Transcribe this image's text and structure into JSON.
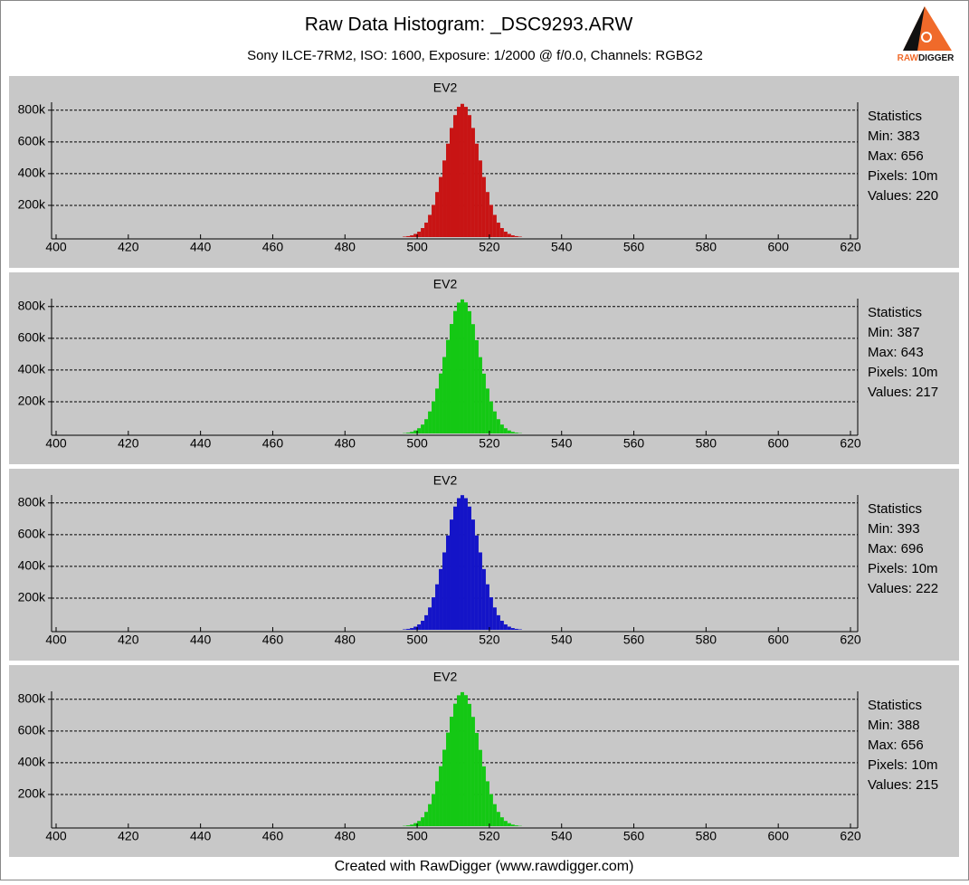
{
  "header": {
    "title": "Raw Data Histogram: _DSC9293.ARW",
    "subtitle": "Sony ILCE-7RM2, ISO: 1600, Exposure: 1/2000 @ f/0.0, Channels: RGBG2"
  },
  "logo": {
    "part1": "RAW",
    "part2": "DIGGER"
  },
  "footer": "Created with RawDigger (www.rawdigger.com)",
  "chart_data": [
    {
      "type": "histogram",
      "title": "EV2",
      "color": "#c81414",
      "bins": [
        496,
        497,
        498,
        499,
        500,
        501,
        502,
        503,
        504,
        505,
        506,
        507,
        508,
        509,
        510,
        511,
        512,
        513,
        514,
        515,
        516,
        517,
        518,
        519,
        520,
        521,
        522,
        523,
        524,
        525,
        526,
        527,
        528,
        529
      ],
      "values": [
        3000,
        6000,
        11000,
        20000,
        34000,
        57000,
        91000,
        140000,
        203000,
        284000,
        379000,
        483000,
        589000,
        688000,
        769000,
        821000,
        840000,
        821000,
        769000,
        688000,
        589000,
        483000,
        379000,
        284000,
        203000,
        140000,
        91000,
        57000,
        34000,
        20000,
        11000,
        6000,
        3000
      ],
      "xlim": [
        400,
        620
      ],
      "xticks": [
        400,
        420,
        440,
        460,
        480,
        500,
        520,
        540,
        560,
        580,
        600,
        620
      ],
      "ylim": [
        0,
        850000
      ],
      "yticks": [
        {
          "value": 200000,
          "label": "200k"
        },
        {
          "value": 400000,
          "label": "400k"
        },
        {
          "value": 600000,
          "label": "600k"
        },
        {
          "value": 800000,
          "label": "800k"
        }
      ],
      "grid": true,
      "statistics": [
        "Statistics",
        "Min: 383",
        "Max: 656",
        "Pixels: 10m",
        "Values: 220"
      ]
    },
    {
      "type": "histogram",
      "title": "EV2",
      "color": "#14c814",
      "bins": [
        496,
        497,
        498,
        499,
        500,
        501,
        502,
        503,
        504,
        505,
        506,
        507,
        508,
        509,
        510,
        511,
        512,
        513,
        514,
        515,
        516,
        517,
        518,
        519,
        520,
        521,
        522,
        523,
        524,
        525,
        526,
        527,
        528,
        529
      ],
      "values": [
        2000,
        5000,
        10000,
        19000,
        33000,
        56000,
        90000,
        139000,
        202000,
        283000,
        378000,
        482000,
        590000,
        690000,
        772000,
        825000,
        845000,
        826000,
        771000,
        689000,
        588000,
        481000,
        377000,
        283000,
        202000,
        139000,
        90000,
        56000,
        33000,
        19000,
        10000,
        5000,
        2000
      ],
      "xlim": [
        400,
        620
      ],
      "xticks": [
        400,
        420,
        440,
        460,
        480,
        500,
        520,
        540,
        560,
        580,
        600,
        620
      ],
      "ylim": [
        0,
        850000
      ],
      "yticks": [
        {
          "value": 200000,
          "label": "200k"
        },
        {
          "value": 400000,
          "label": "400k"
        },
        {
          "value": 600000,
          "label": "600k"
        },
        {
          "value": 800000,
          "label": "800k"
        }
      ],
      "grid": true,
      "statistics": [
        "Statistics",
        "Min: 387",
        "Max: 643",
        "Pixels: 10m",
        "Values: 217"
      ]
    },
    {
      "type": "histogram",
      "title": "EV2",
      "color": "#1414c8",
      "bins": [
        496,
        497,
        498,
        499,
        500,
        501,
        502,
        503,
        504,
        505,
        506,
        507,
        508,
        509,
        510,
        511,
        512,
        513,
        514,
        515,
        516,
        517,
        518,
        519,
        520,
        521,
        522,
        523,
        524,
        525,
        526,
        527,
        528,
        529
      ],
      "values": [
        3000,
        6000,
        11000,
        20000,
        34000,
        57000,
        92000,
        141000,
        205000,
        287000,
        383000,
        488000,
        595000,
        695000,
        777000,
        830000,
        849000,
        830000,
        777000,
        695000,
        595000,
        488000,
        383000,
        287000,
        205000,
        141000,
        92000,
        57000,
        34000,
        20000,
        11000,
        6000,
        3000
      ],
      "xlim": [
        400,
        620
      ],
      "xticks": [
        400,
        420,
        440,
        460,
        480,
        500,
        520,
        540,
        560,
        580,
        600,
        620
      ],
      "ylim": [
        0,
        850000
      ],
      "yticks": [
        {
          "value": 200000,
          "label": "200k"
        },
        {
          "value": 400000,
          "label": "400k"
        },
        {
          "value": 600000,
          "label": "600k"
        },
        {
          "value": 800000,
          "label": "800k"
        }
      ],
      "grid": true,
      "statistics": [
        "Statistics",
        "Min: 393",
        "Max: 696",
        "Pixels: 10m",
        "Values: 222"
      ]
    },
    {
      "type": "histogram",
      "title": "EV2",
      "color": "#14c814",
      "bins": [
        496,
        497,
        498,
        499,
        500,
        501,
        502,
        503,
        504,
        505,
        506,
        507,
        508,
        509,
        510,
        511,
        512,
        513,
        514,
        515,
        516,
        517,
        518,
        519,
        520,
        521,
        522,
        523,
        524,
        525,
        526,
        527,
        528,
        529
      ],
      "values": [
        2000,
        5000,
        10000,
        19000,
        33000,
        56000,
        90000,
        139000,
        202000,
        283000,
        378000,
        482000,
        590000,
        690000,
        772000,
        825000,
        845000,
        826000,
        771000,
        689000,
        588000,
        481000,
        377000,
        283000,
        202000,
        139000,
        90000,
        56000,
        33000,
        19000,
        10000,
        5000,
        2000
      ],
      "xlim": [
        400,
        620
      ],
      "xticks": [
        400,
        420,
        440,
        460,
        480,
        500,
        520,
        540,
        560,
        580,
        600,
        620
      ],
      "ylim": [
        0,
        850000
      ],
      "yticks": [
        {
          "value": 200000,
          "label": "200k"
        },
        {
          "value": 400000,
          "label": "400k"
        },
        {
          "value": 600000,
          "label": "600k"
        },
        {
          "value": 800000,
          "label": "800k"
        }
      ],
      "grid": true,
      "statistics": [
        "Statistics",
        "Min: 388",
        "Max: 656",
        "Pixels: 10m",
        "Values: 215"
      ]
    }
  ]
}
